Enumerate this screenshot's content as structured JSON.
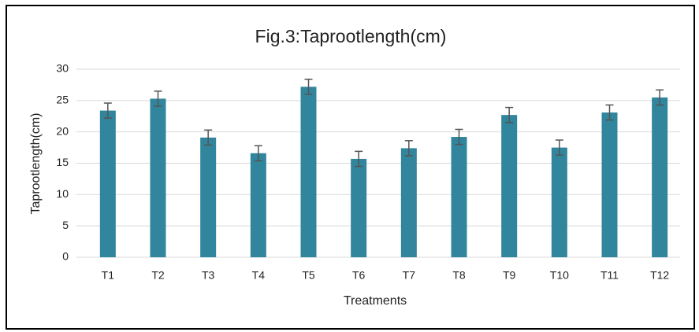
{
  "chart_data": {
    "type": "bar",
    "title": "Fig.3:Taprootlength(cm)",
    "x_label": "Treatments",
    "y_label": "Taprootlength(cm)",
    "categories": [
      "T1",
      "T2",
      "T3",
      "T4",
      "T5",
      "T6",
      "T7",
      "T8",
      "T9",
      "T10",
      "T11",
      "T12"
    ],
    "values": [
      23.4,
      25.3,
      19.1,
      16.6,
      27.2,
      15.7,
      17.4,
      19.2,
      22.7,
      17.5,
      23.1,
      25.5
    ],
    "errors": [
      1.2,
      1.2,
      1.2,
      1.2,
      1.2,
      1.2,
      1.2,
      1.2,
      1.2,
      1.2,
      1.2,
      1.2
    ],
    "color": "#31859c",
    "error_color": "#555555",
    "ylim": [
      0,
      30
    ],
    "yticks": [
      0,
      5,
      10,
      15,
      20,
      25,
      30
    ],
    "grid": true
  }
}
